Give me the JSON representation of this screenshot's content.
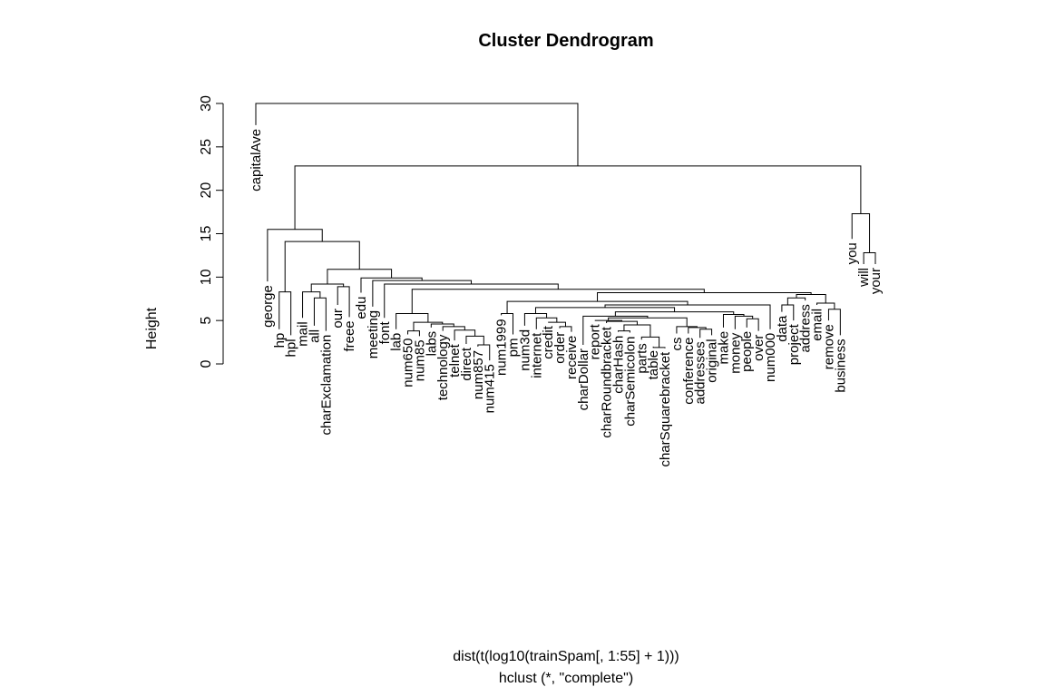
{
  "chart_data": {
    "type": "dendrogram",
    "title": "Cluster Dendrogram",
    "ylabel": "Height",
    "xlabel": "dist(t(log10(trainSpam[, 1:55] + 1)))",
    "sub": "hclust (*, \"complete\")",
    "ylim": [
      0,
      30
    ],
    "yticks": [
      0,
      5,
      10,
      15,
      20,
      25,
      30
    ],
    "grid": false,
    "leaves": [
      {
        "label": "capitalAve",
        "height": 27.5
      },
      {
        "label": "george",
        "height": 9.5
      },
      {
        "label": "hp",
        "height": 4.0
      },
      {
        "label": "hpl",
        "height": 3.3
      },
      {
        "label": "mail",
        "height": 5.3
      },
      {
        "label": "all",
        "height": 4.4
      },
      {
        "label": "charExclamation",
        "height": 3.8
      },
      {
        "label": "our",
        "height": 6.8
      },
      {
        "label": "freee",
        "height": 5.4
      },
      {
        "label": "edu",
        "height": 8.2
      },
      {
        "label": "meeting",
        "height": 6.6
      },
      {
        "label": "font",
        "height": 5.3
      },
      {
        "label": "lab",
        "height": 4.0
      },
      {
        "label": "num650",
        "height": 3.4
      },
      {
        "label": "num85",
        "height": 3.2
      },
      {
        "label": "labs",
        "height": 4.2
      },
      {
        "label": "technology",
        "height": 3.8
      },
      {
        "label": "telnet",
        "height": 2.7
      },
      {
        "label": "direct",
        "height": 2.3
      },
      {
        "label": "num857",
        "height": 2.0
      },
      {
        "label": "num415",
        "height": 0.4
      },
      {
        "label": "num1999",
        "height": 5.6
      },
      {
        "label": "pm",
        "height": 3.4
      },
      {
        "label": "num3d",
        "height": 4.4
      },
      {
        "label": "internet",
        "height": 4.0
      },
      {
        "label": "credit",
        "height": 4.8
      },
      {
        "label": "order",
        "height": 4.1
      },
      {
        "label": "receive",
        "height": 3.7
      },
      {
        "label": "charDollar",
        "height": 2.2
      },
      {
        "label": "report",
        "height": 5.0
      },
      {
        "label": "charRoundbracket",
        "height": 4.7
      },
      {
        "label": "charHash",
        "height": 3.7
      },
      {
        "label": "charSemicolon",
        "height": 3.6
      },
      {
        "label": "parts",
        "height": 2.8
      },
      {
        "label": "table",
        "height": 2.0
      },
      {
        "label": "charSquarebracket",
        "height": 1.8
      },
      {
        "label": "cs",
        "height": 3.5
      },
      {
        "label": "conference",
        "height": 3.5
      },
      {
        "label": "addresses",
        "height": 3.0
      },
      {
        "label": "original",
        "height": 3.3
      },
      {
        "label": "make",
        "height": 4.2
      },
      {
        "label": "money",
        "height": 4.0
      },
      {
        "label": "people",
        "height": 4.2
      },
      {
        "label": "over",
        "height": 3.8
      },
      {
        "label": "num000",
        "height": 4.0
      },
      {
        "label": "data",
        "height": 6.0
      },
      {
        "label": "project",
        "height": 5.0
      },
      {
        "label": "address",
        "height": 7.3
      },
      {
        "label": "email",
        "height": 6.8
      },
      {
        "label": "remove",
        "height": 5.0
      },
      {
        "label": "business",
        "height": 3.3
      },
      {
        "label": "you",
        "height": 14.4
      },
      {
        "label": "will",
        "height": 11.5
      },
      {
        "label": "your",
        "height": 11.5
      }
    ],
    "merges": [
      {
        "a": [
          "leaf",
          20
        ],
        "b": [
          "leaf",
          19
        ],
        "height": 2.2
      },
      {
        "a": [
          "leaf",
          34
        ],
        "b": [
          "leaf",
          35
        ],
        "height": 1.9
      },
      {
        "a": [
          "leaf",
          33
        ],
        "b": [
          "node",
          2
        ],
        "height": 3.1
      },
      {
        "a": [
          "leaf",
          2
        ],
        "b": [
          "leaf",
          3
        ],
        "height": 8.3
      },
      {
        "a": [
          "leaf",
          5
        ],
        "b": [
          "leaf",
          6
        ],
        "height": 7.6
      },
      {
        "a": [
          "leaf",
          4
        ],
        "b": [
          "node",
          5
        ],
        "height": 8.3
      },
      {
        "a": [
          "leaf",
          7
        ],
        "b": [
          "leaf",
          8
        ],
        "height": 8.9
      },
      {
        "a": [
          "node",
          6
        ],
        "b": [
          "node",
          7
        ],
        "height": 9.2
      },
      {
        "a": [
          "leaf",
          13
        ],
        "b": [
          "leaf",
          14
        ],
        "height": 3.8
      },
      {
        "a": [
          "leaf",
          18
        ],
        "b": [
          "node",
          1
        ],
        "height": 3.2
      },
      {
        "a": [
          "leaf",
          17
        ],
        "b": [
          "node",
          10
        ],
        "height": 3.9
      },
      {
        "a": [
          "leaf",
          16
        ],
        "b": [
          "node",
          11
        ],
        "height": 4.3
      },
      {
        "a": [
          "leaf",
          15
        ],
        "b": [
          "node",
          12
        ],
        "height": 4.6
      },
      {
        "a": [
          "node",
          9
        ],
        "b": [
          "node",
          13
        ],
        "height": 4.8
      },
      {
        "a": [
          "leaf",
          12
        ],
        "b": [
          "node",
          14
        ],
        "height": 5.8
      },
      {
        "a": [
          "leaf",
          21
        ],
        "b": [
          "leaf",
          22
        ],
        "height": 5.8
      },
      {
        "a": [
          "leaf",
          26
        ],
        "b": [
          "leaf",
          27
        ],
        "height": 4.3
      },
      {
        "a": [
          "leaf",
          25
        ],
        "b": [
          "node",
          17
        ],
        "height": 4.8
      },
      {
        "a": [
          "leaf",
          24
        ],
        "b": [
          "node",
          18
        ],
        "height": 5.3
      },
      {
        "a": [
          "leaf",
          23
        ],
        "b": [
          "node",
          19
        ],
        "height": 5.8
      },
      {
        "a": [
          "leaf",
          31
        ],
        "b": [
          "leaf",
          32
        ],
        "height": 3.8
      },
      {
        "a": [
          "node",
          21
        ],
        "b": [
          "node",
          3
        ],
        "height": 4.5
      },
      {
        "a": [
          "leaf",
          30
        ],
        "b": [
          "node",
          22
        ],
        "height": 4.9
      },
      {
        "a": [
          "leaf",
          29
        ],
        "b": [
          "node",
          23
        ],
        "height": 5.0
      },
      {
        "a": [
          "leaf",
          38
        ],
        "b": [
          "leaf",
          39
        ],
        "height": 4.0
      },
      {
        "a": [
          "leaf",
          37
        ],
        "b": [
          "node",
          25
        ],
        "height": 4.2
      },
      {
        "a": [
          "leaf",
          36
        ],
        "b": [
          "node",
          26
        ],
        "height": 4.3
      },
      {
        "a": [
          "node",
          24
        ],
        "b": [
          "node",
          27
        ],
        "height": 5.3
      },
      {
        "a": [
          "leaf",
          28
        ],
        "b": [
          "node",
          28
        ],
        "height": 5.5
      },
      {
        "a": [
          "leaf",
          42
        ],
        "b": [
          "leaf",
          43
        ],
        "height": 5.2
      },
      {
        "a": [
          "leaf",
          41
        ],
        "b": [
          "node",
          30
        ],
        "height": 5.5
      },
      {
        "a": [
          "leaf",
          40
        ],
        "b": [
          "node",
          31
        ],
        "height": 5.7
      },
      {
        "a": [
          "node",
          29
        ],
        "b": [
          "node",
          32
        ],
        "height": 6.0
      },
      {
        "a": [
          "node",
          20
        ],
        "b": [
          "node",
          33
        ],
        "height": 6.5
      },
      {
        "a": [
          "leaf",
          44
        ],
        "b": [
          "node",
          34
        ],
        "height": 6.8
      },
      {
        "a": [
          "node",
          16
        ],
        "b": [
          "node",
          35
        ],
        "height": 7.2
      },
      {
        "a": [
          "leaf",
          49
        ],
        "b": [
          "leaf",
          50
        ],
        "height": 6.3
      },
      {
        "a": [
          "leaf",
          48
        ],
        "b": [
          "node",
          37
        ],
        "height": 7.0
      },
      {
        "a": [
          "leaf",
          45
        ],
        "b": [
          "leaf",
          46
        ],
        "height": 6.8
      },
      {
        "a": [
          "node",
          39
        ],
        "b": [
          "leaf",
          47
        ],
        "height": 7.6
      },
      {
        "a": [
          "node",
          40
        ],
        "b": [
          "node",
          38
        ],
        "height": 8.0
      },
      {
        "a": [
          "node",
          36
        ],
        "b": [
          "node",
          41
        ],
        "height": 8.2
      },
      {
        "a": [
          "node",
          15
        ],
        "b": [
          "node",
          42
        ],
        "height": 8.6
      },
      {
        "a": [
          "leaf",
          11
        ],
        "b": [
          "node",
          43
        ],
        "height": 9.2
      },
      {
        "a": [
          "leaf",
          10
        ],
        "b": [
          "node",
          44
        ],
        "height": 9.6
      },
      {
        "a": [
          "leaf",
          9
        ],
        "b": [
          "node",
          45
        ],
        "height": 9.9
      },
      {
        "a": [
          "node",
          8
        ],
        "b": [
          "node",
          46
        ],
        "height": 10.9
      },
      {
        "a": [
          "node",
          4
        ],
        "b": [
          "node",
          47
        ],
        "height": 14.1
      },
      {
        "a": [
          "leaf",
          1
        ],
        "b": [
          "node",
          48
        ],
        "height": 15.5
      },
      {
        "a": [
          "leaf",
          52
        ],
        "b": [
          "leaf",
          53
        ],
        "height": 12.8
      },
      {
        "a": [
          "leaf",
          51
        ],
        "b": [
          "node",
          50
        ],
        "height": 17.3
      },
      {
        "a": [
          "node",
          49
        ],
        "b": [
          "node",
          51
        ],
        "height": 22.8
      },
      {
        "a": [
          "leaf",
          0
        ],
        "b": [
          "node",
          52
        ],
        "height": 30.0
      }
    ]
  }
}
